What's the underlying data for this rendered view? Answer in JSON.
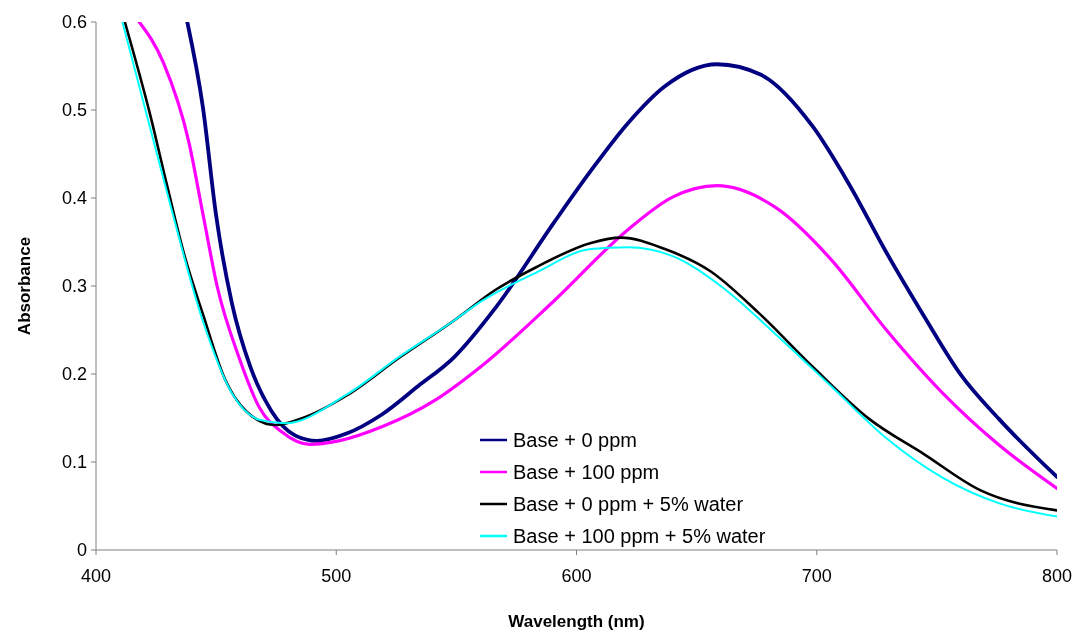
{
  "chart_data": {
    "type": "line",
    "xlabel": "Wavelength (nm)",
    "ylabel": "Absorbance",
    "xlim": [
      400,
      800
    ],
    "ylim": [
      0,
      0.6
    ],
    "xticks": [
      400,
      500,
      600,
      700,
      800
    ],
    "yticks": [
      0,
      0.1,
      0.2,
      0.3,
      0.4,
      0.5,
      0.6
    ],
    "grid": false,
    "legend": "bottom",
    "marker": "none",
    "line_style": "solid",
    "series": [
      {
        "name": "Base + 0 ppm",
        "color": "#000080",
        "x": [
          438,
          444.5,
          450,
          456.6,
          464,
          473,
          483,
          492,
          504,
          519,
          534,
          549,
          566.5,
          590.6,
          606,
          621.4,
          636.8,
          658.5,
          676.8,
          698.4,
          713.8,
          729,
          744.6,
          760,
          775.8,
          800
        ],
        "values": [
          0.6,
          0.503,
          0.38,
          0.28,
          0.21,
          0.158,
          0.13,
          0.124,
          0.132,
          0.154,
          0.186,
          0.219,
          0.276,
          0.372,
          0.431,
          0.485,
          0.527,
          0.552,
          0.54,
          0.481,
          0.414,
          0.338,
          0.266,
          0.199,
          0.149,
          0.083
        ]
      },
      {
        "name": "Base + 100 ppm",
        "color": "#ff00ff",
        "x": [
          418,
          428,
          438.7,
          444.5,
          450.4,
          459.5,
          468,
          477.4,
          489,
          501,
          519,
          541,
          560,
          590.6,
          621.4,
          640,
          658.5,
          683,
          706,
          729,
          752.5,
          776,
          800
        ],
        "values": [
          0.6,
          0.554,
          0.463,
          0.382,
          0.3,
          0.219,
          0.162,
          0.134,
          0.12,
          0.124,
          0.14,
          0.17,
          0.208,
          0.283,
          0.364,
          0.401,
          0.414,
          0.389,
          0.33,
          0.25,
          0.178,
          0.119,
          0.07
        ]
      },
      {
        "name": "Base + 0 ppm + 5% water",
        "color": "#000000",
        "x": [
          412,
          422.5,
          429.6,
          437,
          444.5,
          453.7,
          462.4,
          474.5,
          486,
          504,
          526.5,
          548.6,
          566.5,
          583,
          606,
          618.5,
          636.8,
          655.6,
          675.6,
          698.4,
          721.8,
          744.6,
          768,
          800
        ],
        "values": [
          0.6,
          0.495,
          0.414,
          0.333,
          0.268,
          0.194,
          0.158,
          0.142,
          0.15,
          0.175,
          0.219,
          0.26,
          0.296,
          0.321,
          0.349,
          0.355,
          0.342,
          0.317,
          0.27,
          0.208,
          0.149,
          0.109,
          0.068,
          0.045
        ]
      },
      {
        "name": "Base + 100 ppm + 5% water",
        "color": "#00ffff",
        "x": [
          411,
          429.6,
          444.5,
          456.6,
          468,
          478.7,
          504,
          526.5,
          548.6,
          560,
          583,
          606,
          621.4,
          640,
          660,
          683,
          706,
          729,
          752.5,
          776,
          800
        ],
        "values": [
          0.6,
          0.406,
          0.26,
          0.178,
          0.148,
          0.144,
          0.176,
          0.22,
          0.26,
          0.282,
          0.315,
          0.342,
          0.344,
          0.334,
          0.3,
          0.245,
          0.186,
          0.127,
          0.082,
          0.053,
          0.038
        ]
      }
    ]
  }
}
